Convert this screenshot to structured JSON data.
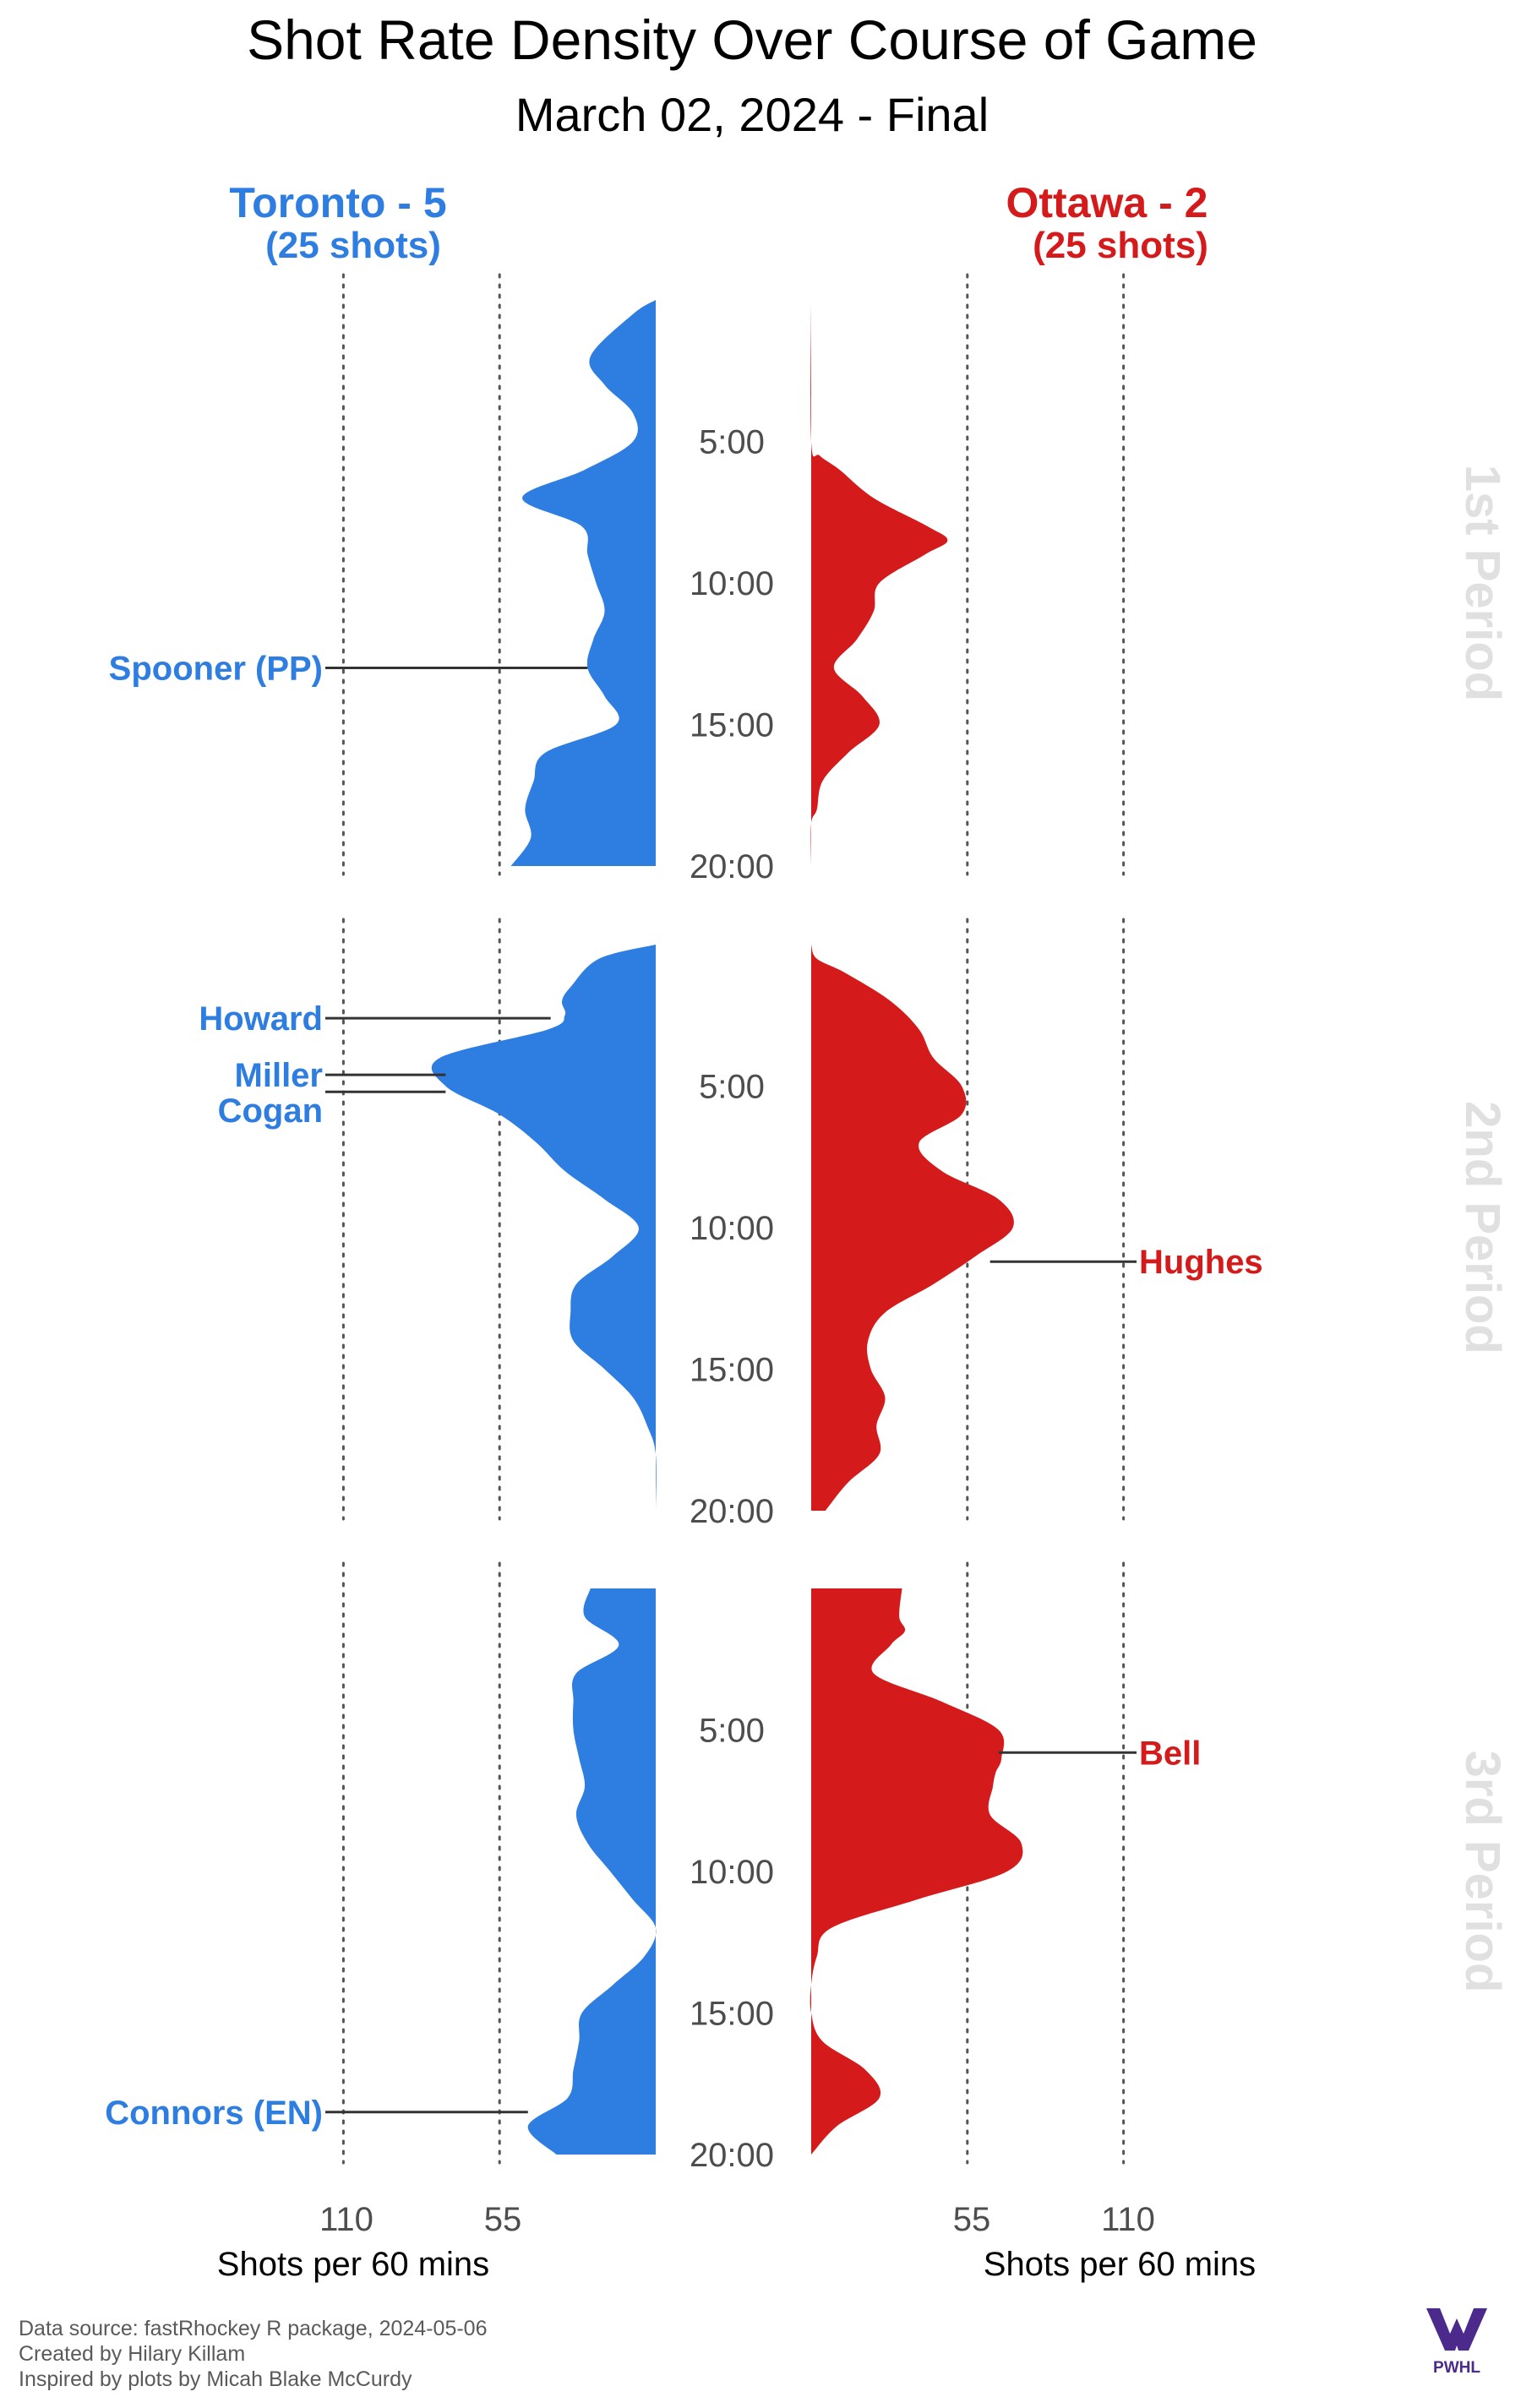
{
  "title": "Shot Rate Density Over Course of Game",
  "subtitle": "March 02, 2024 - Final",
  "colors": {
    "home": "#2e7de0",
    "away": "#d41a1a",
    "period_label": "#e0e0e0",
    "guide": "#555555"
  },
  "home": {
    "label": "Toronto - 5",
    "shots_label": "(25 shots)"
  },
  "away": {
    "label": "Ottawa - 2",
    "shots_label": "(25 shots)"
  },
  "footer": {
    "line1": "Data source: fastRhockey R package, 2024-05-06",
    "line2": "Created by Hilary Killam",
    "line3": "Inspired by plots by Micah Blake McCurdy",
    "logo_text": "PWHL"
  },
  "chart_data": {
    "type": "area",
    "x_unit": "game minute within period",
    "xlim": [
      0,
      20
    ],
    "y_unit": "Shots per 60 mins",
    "axis_label_home": "Shots per 60 mins",
    "axis_label_away": "Shots per 60 mins",
    "axis_ticks": [
      55,
      110
    ],
    "time_tick_labels": [
      "5:00",
      "10:00",
      "15:00",
      "20:00"
    ],
    "periods": [
      {
        "label": "1st Period",
        "time_ticks": [
          {
            "label": "5:00",
            "minute": 5
          },
          {
            "label": "10:00",
            "minute": 10
          },
          {
            "label": "15:00",
            "minute": 15
          },
          {
            "label": "20:00",
            "minute": 20
          }
        ],
        "home_curve": [
          [
            0,
            0
          ],
          [
            0.5,
            8
          ],
          [
            2,
            23
          ],
          [
            3,
            18
          ],
          [
            4,
            8
          ],
          [
            5,
            8
          ],
          [
            6,
            25
          ],
          [
            7,
            47
          ],
          [
            8,
            26
          ],
          [
            9,
            24
          ],
          [
            10,
            21
          ],
          [
            11,
            18
          ],
          [
            12,
            22
          ],
          [
            13,
            24
          ],
          [
            14,
            18
          ],
          [
            15,
            14
          ],
          [
            16,
            39
          ],
          [
            17,
            43
          ],
          [
            18,
            46
          ],
          [
            19,
            44
          ],
          [
            20,
            51
          ]
        ],
        "away_curve": [
          [
            0,
            0
          ],
          [
            5,
            0
          ],
          [
            5.5,
            3
          ],
          [
            6,
            10
          ],
          [
            7,
            22
          ],
          [
            8,
            41
          ],
          [
            8.5,
            48
          ],
          [
            9,
            40
          ],
          [
            10,
            24
          ],
          [
            11,
            22
          ],
          [
            12,
            16
          ],
          [
            13,
            8
          ],
          [
            14,
            18
          ],
          [
            15,
            24
          ],
          [
            16,
            13
          ],
          [
            17,
            4
          ],
          [
            18,
            2
          ],
          [
            18.5,
            0
          ],
          [
            20,
            0
          ]
        ],
        "goals": [
          {
            "team": "home",
            "label": "Spooner (PP)",
            "minute": 13,
            "rate": 24
          }
        ]
      },
      {
        "label": "2nd Period",
        "time_ticks": [
          {
            "label": "5:00",
            "minute": 5
          },
          {
            "label": "10:00",
            "minute": 10
          },
          {
            "label": "15:00",
            "minute": 15
          },
          {
            "label": "20:00",
            "minute": 20
          }
        ],
        "home_curve": [
          [
            0,
            0
          ],
          [
            0.5,
            20
          ],
          [
            1.5,
            30
          ],
          [
            2,
            33
          ],
          [
            2.5,
            32
          ],
          [
            3,
            38
          ],
          [
            4,
            76
          ],
          [
            5,
            74
          ],
          [
            6,
            55
          ],
          [
            7,
            42
          ],
          [
            8,
            32
          ],
          [
            9,
            18
          ],
          [
            10,
            6
          ],
          [
            11,
            15
          ],
          [
            12,
            28
          ],
          [
            13,
            30
          ],
          [
            14,
            29
          ],
          [
            15,
            18
          ],
          [
            16,
            8
          ],
          [
            17,
            3
          ],
          [
            18,
            0
          ],
          [
            20,
            0
          ]
        ],
        "away_curve": [
          [
            0,
            0
          ],
          [
            0.5,
            2
          ],
          [
            1,
            12
          ],
          [
            2,
            28
          ],
          [
            3,
            38
          ],
          [
            4,
            43
          ],
          [
            5,
            53
          ],
          [
            6,
            53
          ],
          [
            7,
            38
          ],
          [
            8,
            46
          ],
          [
            9,
            66
          ],
          [
            10,
            71
          ],
          [
            11,
            58
          ],
          [
            12,
            43
          ],
          [
            13,
            26
          ],
          [
            14,
            20
          ],
          [
            15,
            21
          ],
          [
            16,
            26
          ],
          [
            17,
            23
          ],
          [
            18,
            24
          ],
          [
            19,
            13
          ],
          [
            20,
            5
          ]
        ],
        "goals": [
          {
            "team": "home",
            "label": "Howard",
            "minute": 2.6,
            "rate": 37
          },
          {
            "team": "home",
            "label": "Miller",
            "minute": 4.6,
            "rate": 74
          },
          {
            "team": "home",
            "label": "Cogan",
            "minute": 5.2,
            "rate": 74
          },
          {
            "team": "away",
            "label": "Hughes",
            "minute": 11.2,
            "rate": 63
          }
        ]
      },
      {
        "label": "3rd Period",
        "time_ticks": [
          {
            "label": "5:00",
            "minute": 5
          },
          {
            "label": "10:00",
            "minute": 10
          },
          {
            "label": "15:00",
            "minute": 15
          },
          {
            "label": "20:00",
            "minute": 20
          }
        ],
        "home_curve": [
          [
            0,
            23
          ],
          [
            1,
            25
          ],
          [
            2,
            13
          ],
          [
            3,
            28
          ],
          [
            4,
            29
          ],
          [
            5,
            29
          ],
          [
            6,
            27
          ],
          [
            7,
            25
          ],
          [
            8,
            28
          ],
          [
            9,
            24
          ],
          [
            10,
            16
          ],
          [
            11,
            8
          ],
          [
            12,
            0
          ],
          [
            13,
            4
          ],
          [
            14,
            15
          ],
          [
            15,
            26
          ],
          [
            16,
            27
          ],
          [
            17,
            29
          ],
          [
            18,
            31
          ],
          [
            19,
            45
          ],
          [
            20,
            35
          ]
        ],
        "away_curve": [
          [
            0,
            32
          ],
          [
            1,
            31
          ],
          [
            1.5,
            33
          ],
          [
            2,
            28
          ],
          [
            3,
            22
          ],
          [
            4,
            46
          ],
          [
            5,
            66
          ],
          [
            6,
            67
          ],
          [
            6.5,
            65
          ],
          [
            7,
            64
          ],
          [
            8,
            63
          ],
          [
            9,
            74
          ],
          [
            10,
            69
          ],
          [
            11,
            37
          ],
          [
            12,
            7
          ],
          [
            13,
            2
          ],
          [
            14,
            0
          ],
          [
            15,
            0
          ],
          [
            16,
            4
          ],
          [
            17,
            19
          ],
          [
            18,
            24
          ],
          [
            19,
            9
          ],
          [
            20,
            0
          ]
        ],
        "goals": [
          {
            "team": "home",
            "label": "Connors (EN)",
            "minute": 18.5,
            "rate": 45
          },
          {
            "team": "away",
            "label": "Bell",
            "minute": 5.8,
            "rate": 66
          }
        ]
      }
    ]
  }
}
